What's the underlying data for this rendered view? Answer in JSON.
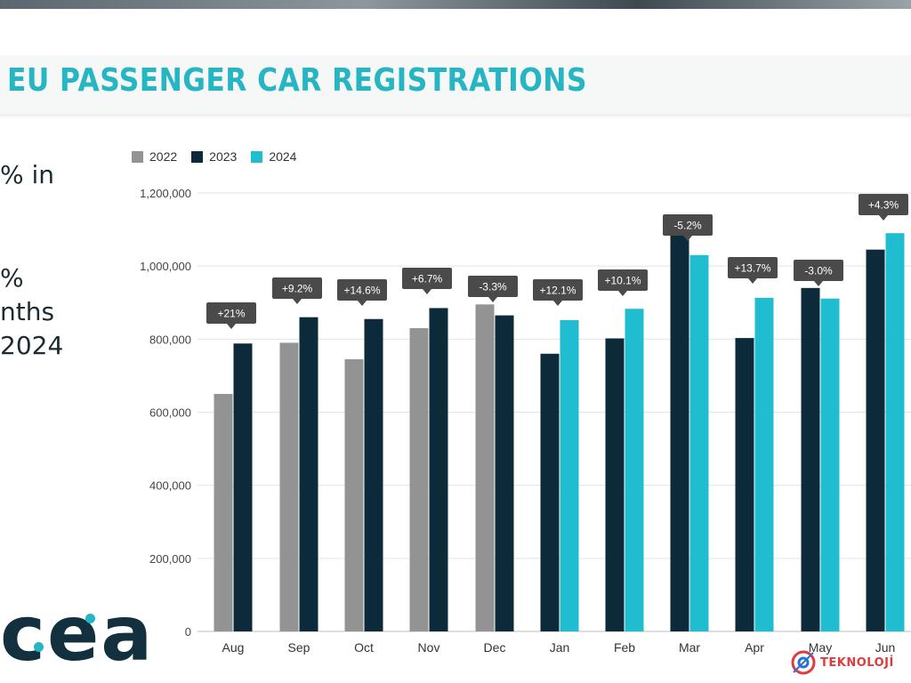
{
  "title": "EU PASSENGER CAR REGISTRATIONS",
  "side_text": [
    "% in",
    "%",
    "nths",
    "2024"
  ],
  "logo": "cea",
  "watermark": "TEKNOLOJİ",
  "colors": {
    "2022": "#939393",
    "2023": "#0d2a3a",
    "2024": "#20bcd0",
    "accent": "#25b5c3",
    "callout": "#4a4a4a"
  },
  "chart_data": {
    "type": "bar",
    "title": "EU PASSENGER CAR REGISTRATIONS",
    "legend": [
      "2022",
      "2023",
      "2024"
    ],
    "legend_position": "top-left",
    "ylim": [
      0,
      1200000
    ],
    "yticks": [
      "0",
      "200,000",
      "400,000",
      "600,000",
      "800,000",
      "1,000,000",
      "1,200,000"
    ],
    "ytick_values": [
      0,
      200000,
      400000,
      600000,
      800000,
      1000000,
      1200000
    ],
    "grid": true,
    "categories": [
      "Aug",
      "Sep",
      "Oct",
      "Nov",
      "Dec",
      "Jan",
      "Feb",
      "Mar",
      "Apr",
      "May",
      "Jun"
    ],
    "series": [
      {
        "name": "2022",
        "values": [
          650000,
          790000,
          745000,
          830000,
          895000,
          null,
          null,
          null,
          null,
          null,
          null
        ]
      },
      {
        "name": "2023",
        "values": [
          788000,
          860000,
          855000,
          885000,
          865000,
          760000,
          802000,
          1088000,
          803000,
          940000,
          1045000
        ]
      },
      {
        "name": "2024",
        "values": [
          null,
          null,
          null,
          null,
          null,
          852000,
          883000,
          1030000,
          913000,
          911000,
          1090000
        ]
      }
    ],
    "annotations": [
      "+21%",
      "+9.2%",
      "+14.6%",
      "+6.7%",
      "-3.3%",
      "+12.1%",
      "+10.1%",
      "-5.2%",
      "+13.7%",
      "-3.0%",
      "+4.3%"
    ]
  }
}
